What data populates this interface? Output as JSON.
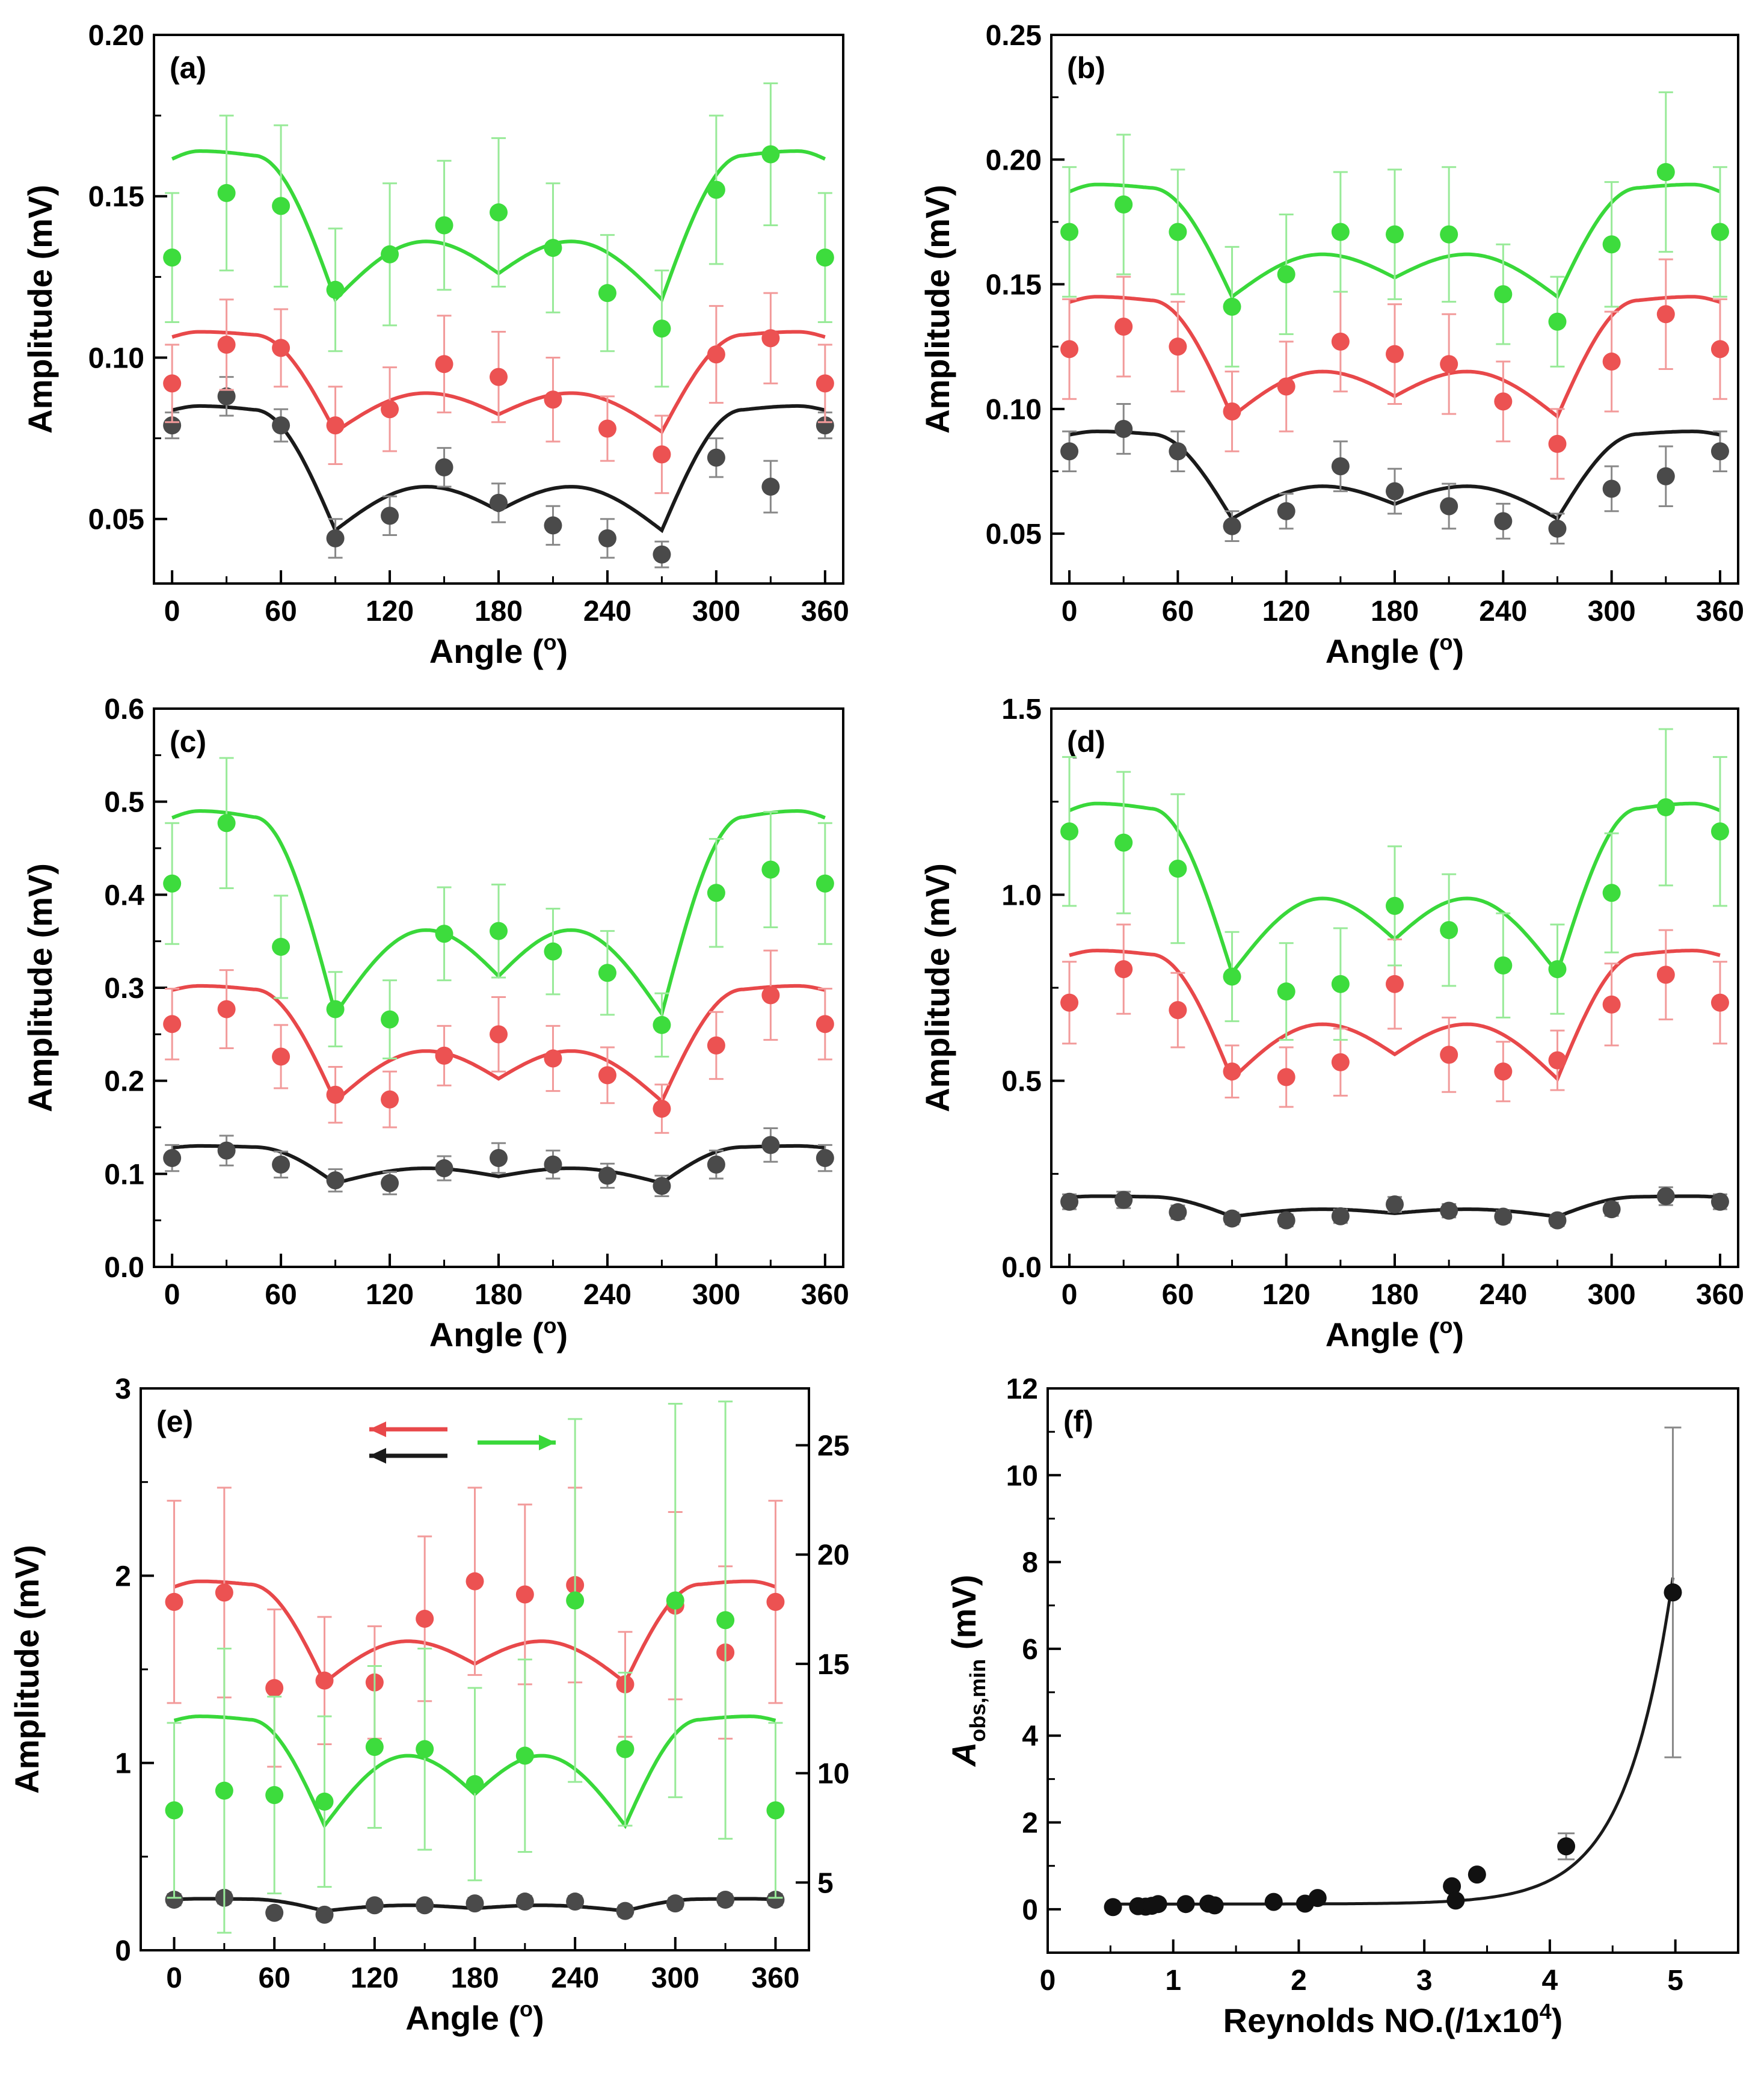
{
  "figure": {
    "title": ""
  },
  "colors": {
    "black": "#1a1a1a",
    "red": "#e8484a",
    "green": "#39d83a",
    "black_point": "#4a4a4a",
    "red_point": "#ec5252",
    "green_point": "#3ddc3d",
    "axis": "#000000"
  },
  "chart_data": [
    {
      "type": "scatter",
      "panel_label": "(a)",
      "xlabel": "Angle (o)",
      "ylabel": "Amplitude (mV)",
      "xlim": [
        -10,
        370
      ],
      "ylim": [
        0.03,
        0.2
      ],
      "x_ticks": [
        0,
        60,
        120,
        180,
        240,
        300,
        360
      ],
      "y_ticks": [
        0.05,
        0.1,
        0.15,
        0.2
      ],
      "y_tick_labels": [
        "0.05",
        "0.10",
        "0.15",
        "0.20"
      ],
      "fit_params": {
        "black": {
          "a": 0.085,
          "b": 0.06,
          "c": 0.0465
        },
        "red": {
          "a": 0.108,
          "b": 0.089,
          "c": 0.077
        },
        "green": {
          "a": 0.164,
          "b": 0.136,
          "c": 0.118
        }
      },
      "series": [
        {
          "name": "black",
          "x": [
            0,
            30,
            60,
            90,
            120,
            150,
            180,
            210,
            240,
            270,
            300,
            330,
            360
          ],
          "y": [
            0.079,
            0.088,
            0.079,
            0.044,
            0.051,
            0.066,
            0.055,
            0.048,
            0.044,
            0.039,
            0.069,
            0.06,
            0.079
          ],
          "err": [
            0.004,
            0.006,
            0.005,
            0.006,
            0.006,
            0.006,
            0.006,
            0.006,
            0.006,
            0.004,
            0.006,
            0.008,
            0.004
          ]
        },
        {
          "name": "red",
          "x": [
            0,
            30,
            60,
            90,
            120,
            150,
            180,
            210,
            240,
            270,
            300,
            330,
            360
          ],
          "y": [
            0.092,
            0.104,
            0.103,
            0.079,
            0.084,
            0.098,
            0.094,
            0.087,
            0.078,
            0.07,
            0.101,
            0.106,
            0.092
          ],
          "err": [
            0.012,
            0.014,
            0.012,
            0.012,
            0.013,
            0.015,
            0.014,
            0.013,
            0.01,
            0.012,
            0.015,
            0.014,
            0.012
          ]
        },
        {
          "name": "green",
          "x": [
            0,
            30,
            60,
            90,
            120,
            150,
            180,
            210,
            240,
            270,
            300,
            330,
            360
          ],
          "y": [
            0.131,
            0.151,
            0.147,
            0.121,
            0.132,
            0.141,
            0.145,
            0.134,
            0.12,
            0.109,
            0.152,
            0.163,
            0.131
          ],
          "err": [
            0.02,
            0.024,
            0.025,
            0.019,
            0.022,
            0.02,
            0.023,
            0.02,
            0.018,
            0.018,
            0.023,
            0.022,
            0.02
          ]
        }
      ]
    },
    {
      "type": "scatter",
      "panel_label": "(b)",
      "xlabel": "Angle (o)",
      "ylabel": "Amplitude (mV)",
      "xlim": [
        -10,
        370
      ],
      "ylim": [
        0.03,
        0.25
      ],
      "x_ticks": [
        0,
        60,
        120,
        180,
        240,
        300,
        360
      ],
      "y_ticks": [
        0.05,
        0.1,
        0.15,
        0.2,
        0.25
      ],
      "y_tick_labels": [
        "0.05",
        "0.10",
        "0.15",
        "0.20",
        "0.25"
      ],
      "fit_params": {
        "black": {
          "a": 0.091,
          "b": 0.069,
          "c": 0.056
        },
        "red": {
          "a": 0.145,
          "b": 0.115,
          "c": 0.097
        },
        "green": {
          "a": 0.19,
          "b": 0.162,
          "c": 0.145
        }
      },
      "series": [
        {
          "name": "black",
          "x": [
            0,
            30,
            60,
            90,
            120,
            150,
            180,
            210,
            240,
            270,
            300,
            330,
            360
          ],
          "y": [
            0.083,
            0.092,
            0.083,
            0.053,
            0.059,
            0.077,
            0.067,
            0.061,
            0.055,
            0.052,
            0.068,
            0.073,
            0.083
          ],
          "err": [
            0.008,
            0.01,
            0.008,
            0.006,
            0.007,
            0.01,
            0.009,
            0.009,
            0.007,
            0.006,
            0.009,
            0.012,
            0.008
          ]
        },
        {
          "name": "red",
          "x": [
            0,
            30,
            60,
            90,
            120,
            150,
            180,
            210,
            240,
            270,
            300,
            330,
            360
          ],
          "y": [
            0.124,
            0.133,
            0.125,
            0.099,
            0.109,
            0.127,
            0.122,
            0.118,
            0.103,
            0.086,
            0.119,
            0.138,
            0.124
          ],
          "err": [
            0.02,
            0.02,
            0.018,
            0.016,
            0.018,
            0.02,
            0.02,
            0.02,
            0.016,
            0.014,
            0.02,
            0.022,
            0.02
          ]
        },
        {
          "name": "green",
          "x": [
            0,
            30,
            60,
            90,
            120,
            150,
            180,
            210,
            240,
            270,
            300,
            330,
            360
          ],
          "y": [
            0.171,
            0.182,
            0.171,
            0.141,
            0.154,
            0.171,
            0.17,
            0.17,
            0.146,
            0.135,
            0.166,
            0.195,
            0.171
          ],
          "err": [
            0.026,
            0.028,
            0.025,
            0.024,
            0.024,
            0.024,
            0.026,
            0.027,
            0.02,
            0.018,
            0.025,
            0.032,
            0.026
          ]
        }
      ]
    },
    {
      "type": "scatter",
      "panel_label": "(c)",
      "xlabel": "Angle (o)",
      "ylabel": "Amplitude (mV)",
      "xlim": [
        -10,
        370
      ],
      "ylim": [
        0.0,
        0.6
      ],
      "x_ticks": [
        0,
        60,
        120,
        180,
        240,
        300,
        360
      ],
      "y_ticks": [
        0.0,
        0.1,
        0.2,
        0.3,
        0.4,
        0.5,
        0.6
      ],
      "y_tick_labels": [
        "0.0",
        "0.1",
        "0.2",
        "0.3",
        "0.4",
        "0.5",
        "0.6"
      ],
      "fit_params": {
        "black": {
          "a": 0.13,
          "b": 0.106,
          "c": 0.09
        },
        "red": {
          "a": 0.302,
          "b": 0.232,
          "c": 0.178
        },
        "green": {
          "a": 0.49,
          "b": 0.362,
          "c": 0.272
        }
      },
      "series": [
        {
          "name": "black",
          "x": [
            0,
            30,
            60,
            90,
            120,
            150,
            180,
            210,
            240,
            270,
            300,
            330,
            360
          ],
          "y": [
            0.117,
            0.125,
            0.11,
            0.093,
            0.09,
            0.106,
            0.117,
            0.11,
            0.098,
            0.087,
            0.11,
            0.131,
            0.117
          ],
          "err": [
            0.014,
            0.016,
            0.014,
            0.012,
            0.012,
            0.013,
            0.016,
            0.015,
            0.013,
            0.011,
            0.015,
            0.018,
            0.014
          ]
        },
        {
          "name": "red",
          "x": [
            0,
            30,
            60,
            90,
            120,
            150,
            180,
            210,
            240,
            270,
            300,
            330,
            360
          ],
          "y": [
            0.261,
            0.277,
            0.226,
            0.185,
            0.18,
            0.227,
            0.25,
            0.224,
            0.206,
            0.17,
            0.238,
            0.292,
            0.261
          ],
          "err": [
            0.038,
            0.042,
            0.034,
            0.03,
            0.03,
            0.032,
            0.04,
            0.035,
            0.03,
            0.026,
            0.036,
            0.048,
            0.038
          ]
        },
        {
          "name": "green",
          "x": [
            0,
            30,
            60,
            90,
            120,
            150,
            180,
            210,
            240,
            270,
            300,
            330,
            360
          ],
          "y": [
            0.412,
            0.477,
            0.344,
            0.277,
            0.266,
            0.358,
            0.361,
            0.339,
            0.316,
            0.26,
            0.402,
            0.427,
            0.412
          ],
          "err": [
            0.065,
            0.07,
            0.055,
            0.04,
            0.042,
            0.05,
            0.05,
            0.046,
            0.045,
            0.034,
            0.058,
            0.062,
            0.065
          ]
        }
      ]
    },
    {
      "type": "scatter",
      "panel_label": "(d)",
      "xlabel": "Angle (o)",
      "ylabel": "Amplitude (mV)",
      "xlim": [
        -10,
        370
      ],
      "ylim": [
        0.0,
        1.5
      ],
      "x_ticks": [
        0,
        60,
        120,
        180,
        240,
        300,
        360
      ],
      "y_ticks": [
        0.0,
        0.5,
        1.0,
        1.5
      ],
      "y_tick_labels": [
        "0.0",
        "0.5",
        "1.0",
        "1.5"
      ],
      "fit_params": {
        "black": {
          "a": 0.19,
          "b": 0.155,
          "c": 0.135
        },
        "red": {
          "a": 0.85,
          "b": 0.652,
          "c": 0.505
        },
        "green": {
          "a": 1.245,
          "b": 0.99,
          "c": 0.79
        }
      },
      "series": [
        {
          "name": "black",
          "x": [
            0,
            30,
            60,
            90,
            120,
            150,
            180,
            210,
            240,
            270,
            300,
            330,
            360
          ],
          "y": [
            0.175,
            0.18,
            0.147,
            0.13,
            0.125,
            0.136,
            0.168,
            0.151,
            0.135,
            0.125,
            0.155,
            0.19,
            0.175
          ],
          "err": [
            0.02,
            0.022,
            0.018,
            0.016,
            0.016,
            0.018,
            0.02,
            0.018,
            0.016,
            0.015,
            0.018,
            0.024,
            0.02
          ]
        },
        {
          "name": "red",
          "x": [
            0,
            30,
            60,
            90,
            120,
            150,
            180,
            210,
            240,
            270,
            300,
            330,
            360
          ],
          "y": [
            0.71,
            0.8,
            0.69,
            0.525,
            0.51,
            0.55,
            0.76,
            0.57,
            0.525,
            0.555,
            0.705,
            0.785,
            0.71
          ],
          "err": [
            0.11,
            0.12,
            0.1,
            0.07,
            0.08,
            0.09,
            0.12,
            0.1,
            0.08,
            0.08,
            0.11,
            0.12,
            0.11
          ]
        },
        {
          "name": "green",
          "x": [
            0,
            30,
            60,
            90,
            120,
            150,
            180,
            210,
            240,
            270,
            300,
            330,
            360
          ],
          "y": [
            1.17,
            1.14,
            1.07,
            0.78,
            0.74,
            0.76,
            0.97,
            0.905,
            0.81,
            0.8,
            1.005,
            1.235,
            1.17
          ],
          "err": [
            0.2,
            0.19,
            0.2,
            0.12,
            0.13,
            0.15,
            0.16,
            0.15,
            0.14,
            0.12,
            0.16,
            0.21,
            0.2
          ]
        }
      ]
    },
    {
      "type": "scatter",
      "panel_label": "(e)",
      "xlabel": "Angle (o)",
      "ylabel": "Amplitude (mV)",
      "xlim": [
        -20,
        380
      ],
      "ylim": [
        0,
        3
      ],
      "y2lim": [
        1.9,
        27.6
      ],
      "x_ticks": [
        0,
        60,
        120,
        180,
        240,
        300,
        360
      ],
      "y_ticks": [
        0,
        1,
        2,
        3
      ],
      "y_tick_labels": [
        "0",
        "1",
        "2",
        "3"
      ],
      "y2_ticks": [
        5,
        10,
        15,
        20,
        25
      ],
      "legend_arrows": [
        {
          "color": "red",
          "direction": "left"
        },
        {
          "color": "black",
          "direction": "left"
        },
        {
          "color": "green",
          "direction": "right"
        }
      ],
      "fit_params": {
        "black": {
          "a": 0.275,
          "b": 0.24,
          "c": 0.21
        },
        "red": {
          "a": 1.97,
          "b": 1.65,
          "c": 1.43
        },
        "green_axis2": {
          "a": 12.6,
          "b": 10.8,
          "c": 7.6
        }
      },
      "series": [
        {
          "name": "black",
          "axis": "left",
          "x": [
            0,
            30,
            60,
            90,
            120,
            150,
            180,
            210,
            240,
            270,
            300,
            330,
            360
          ],
          "y": [
            0.27,
            0.28,
            0.2,
            0.19,
            0.24,
            0.24,
            0.25,
            0.26,
            0.26,
            0.21,
            0.25,
            0.27,
            0.27
          ],
          "err": [
            0.03,
            0.03,
            0.03,
            0.03,
            0.03,
            0.03,
            0.03,
            0.03,
            0.03,
            0.03,
            0.03,
            0.03,
            0.03
          ]
        },
        {
          "name": "red",
          "axis": "left",
          "x": [
            0,
            30,
            60,
            90,
            120,
            150,
            180,
            210,
            240,
            270,
            300,
            330,
            360
          ],
          "y": [
            1.86,
            1.91,
            1.4,
            1.44,
            1.43,
            1.77,
            1.97,
            1.9,
            1.95,
            1.42,
            1.84,
            1.59,
            1.86
          ],
          "err": [
            0.54,
            0.56,
            0.42,
            0.34,
            0.3,
            0.44,
            0.5,
            0.48,
            0.52,
            0.28,
            0.5,
            0.46,
            0.54
          ]
        },
        {
          "name": "green",
          "axis": "right",
          "x": [
            0,
            30,
            60,
            90,
            120,
            150,
            180,
            210,
            240,
            270,
            300,
            330,
            360
          ],
          "y": [
            8.3,
            9.2,
            9.0,
            8.7,
            11.2,
            11.1,
            9.5,
            10.8,
            17.9,
            11.1,
            17.9,
            17.0,
            8.3
          ],
          "err": [
            4.0,
            6.5,
            4.5,
            3.9,
            3.7,
            4.6,
            4.4,
            4.4,
            8.3,
            3.5,
            9.0,
            10.0,
            4.0
          ]
        }
      ]
    },
    {
      "type": "scatter",
      "panel_label": "(f)",
      "xlabel": "Reynolds NO.(/1x10^4)",
      "ylabel": "A_obs,min (mV)",
      "xlim": [
        0,
        5.5
      ],
      "ylim": [
        -1,
        12
      ],
      "x_ticks": [
        0,
        1,
        2,
        3,
        4,
        5
      ],
      "y_ticks": [
        0,
        2,
        4,
        6,
        8,
        10,
        12
      ],
      "x": [
        0.52,
        0.72,
        0.78,
        0.83,
        0.88,
        1.1,
        1.28,
        1.33,
        1.8,
        2.05,
        2.15,
        3.22,
        3.25,
        3.42,
        4.13,
        4.98
      ],
      "y": [
        0.05,
        0.07,
        0.06,
        0.08,
        0.12,
        0.12,
        0.13,
        0.09,
        0.17,
        0.13,
        0.26,
        0.53,
        0.2,
        0.8,
        1.45,
        7.3
      ],
      "err": [
        0.02,
        0.02,
        0.02,
        0.02,
        0.03,
        0.03,
        0.03,
        0.02,
        0.04,
        0.03,
        0.05,
        0.1,
        0.05,
        0.1,
        0.3,
        3.8
      ],
      "fit": {
        "type": "exponential",
        "y0": 0.12,
        "A": 1.24e-05,
        "t": 0.374
      }
    }
  ],
  "labels": {
    "a": {
      "xlabel_main": "Angle (",
      "xlabel_sup": "o",
      "xlabel_end": ")"
    },
    "f": {
      "ylabel_main": "A",
      "ylabel_sub": "obs,min",
      "ylabel_end": " (mV)",
      "xlabel_main": "Reynolds NO.(/1x10",
      "xlabel_sup": "4",
      "xlabel_end": ")"
    }
  }
}
